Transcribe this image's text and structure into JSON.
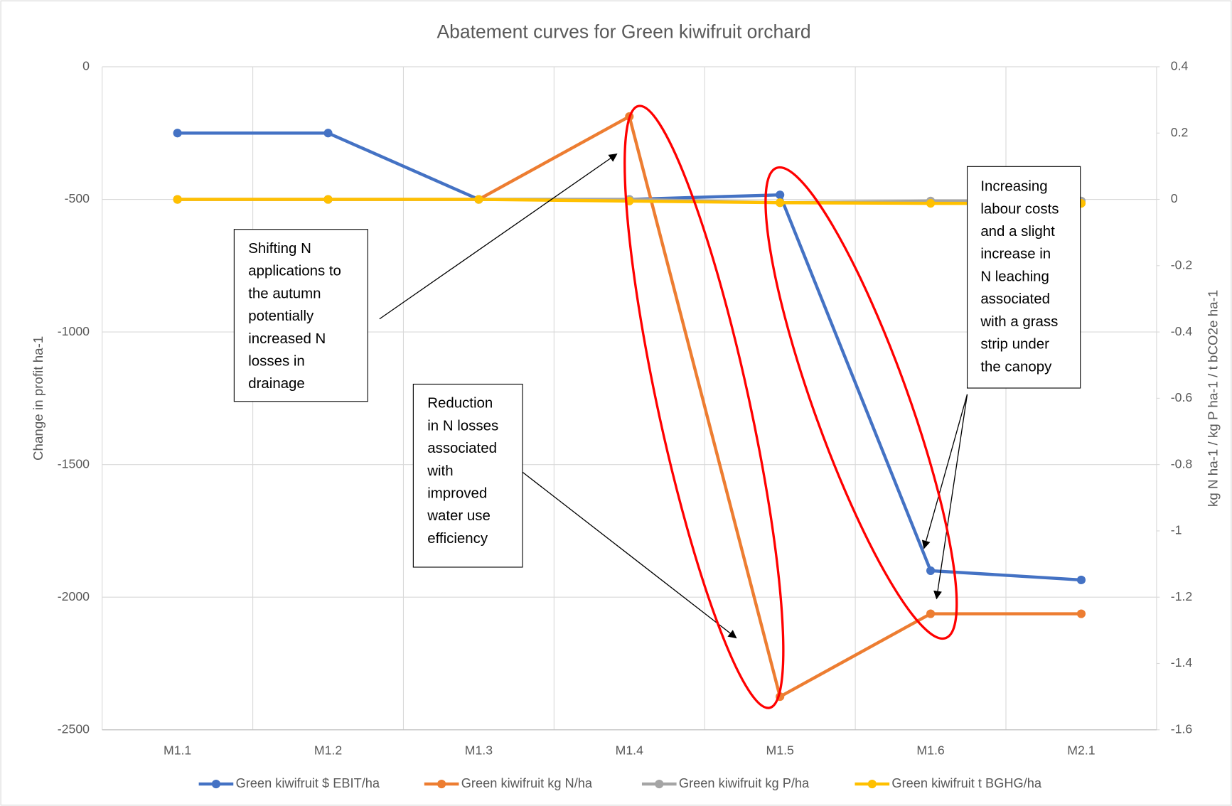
{
  "chart_data": {
    "type": "line",
    "title": "Abatement curves for Green kiwifruit orchard",
    "y_label": "Change in profit ha-1",
    "y2_label": "kg N ha-1 / kg P ha-1 / t bCO2e ha-1",
    "categories": [
      "M1.1",
      "M1.2",
      "M1.3",
      "M1.4",
      "M1.5",
      "M1.6",
      "M2.1"
    ],
    "ylim": [
      -2500,
      0
    ],
    "yticks": [
      -2500,
      -2000,
      -1500,
      -1000,
      -500,
      0
    ],
    "y2lim": [
      -1.6,
      0.4
    ],
    "y2ticks": [
      -1.6,
      -1.4,
      -1.2,
      -1,
      -0.8,
      -0.6,
      -0.4,
      -0.2,
      0,
      0.2,
      0.4
    ],
    "grid": true,
    "legend": "bottom",
    "series": [
      {
        "name": "Green kiwifruit $ EBIT/ha",
        "color": "#4472c4",
        "axis": "y",
        "values": [
          -250,
          -250,
          -500,
          -500,
          -483,
          -1900,
          -1935
        ]
      },
      {
        "name": "Green kiwifruit kg N/ha",
        "color": "#ed7d31",
        "axis": "y2",
        "values": [
          0,
          0,
          0,
          0.25,
          -1.5,
          -1.25,
          -1.25
        ]
      },
      {
        "name": "Green kiwifruit kg P/ha",
        "color": "#a5a5a5",
        "axis": "y2",
        "values": [
          0,
          0,
          0,
          0,
          -0.01,
          -0.005,
          -0.005
        ]
      },
      {
        "name": "Green kiwifruit t BGHG/ha",
        "color": "#ffc000",
        "axis": "y2",
        "values": [
          0,
          0,
          0,
          -0.005,
          -0.01,
          -0.012,
          -0.012
        ]
      }
    ],
    "annotations": [
      [
        "Shifting N",
        "applications to",
        "the autumn",
        "potentially",
        "increased N",
        "losses in",
        "drainage"
      ],
      [
        "Reduction",
        "in N losses",
        "associated",
        "with",
        "improved",
        "water use",
        "efficiency"
      ],
      [
        "Increasing",
        "labour costs",
        "and a slight",
        "increase in",
        "N leaching",
        "associated",
        "with a grass",
        "strip under",
        "the canopy"
      ]
    ]
  }
}
